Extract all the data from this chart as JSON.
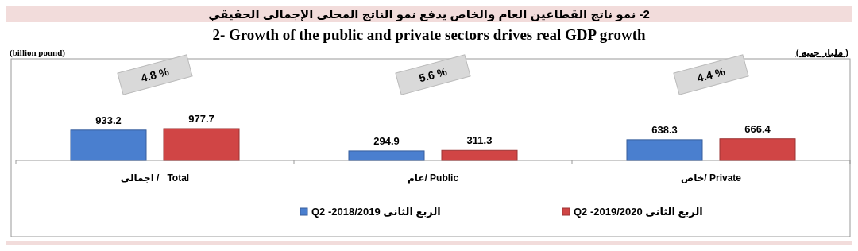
{
  "chart_data": {
    "type": "bar",
    "title": "2- نمو ناتج القطاعين العام والخاص يدفع نمو الناتج المحلى الإجمالى الحقيقي",
    "subtitle": "2-  Growth of the public and private sectors drives real GDP growth",
    "categories": [
      "اجمالي /   Total",
      "عام/ Public",
      "خاص/ Private"
    ],
    "series": [
      {
        "name": "Q2  -2018/2019 الربع الثانى",
        "color": "#4a7fcf",
        "values": [
          933.2,
          294.9,
          638.3
        ]
      },
      {
        "name": "Q2  -2019/2020 الربع الثانى",
        "color": "#d04545",
        "values": [
          977.7,
          311.3,
          666.4
        ]
      }
    ],
    "data_labels": true,
    "legend": "bottom",
    "tick_labels": "x",
    "annotations": [
      "(billion pound)",
      "( مليار جنيه )",
      "4.8 %",
      "5.6 %",
      "4.4 %"
    ]
  }
}
